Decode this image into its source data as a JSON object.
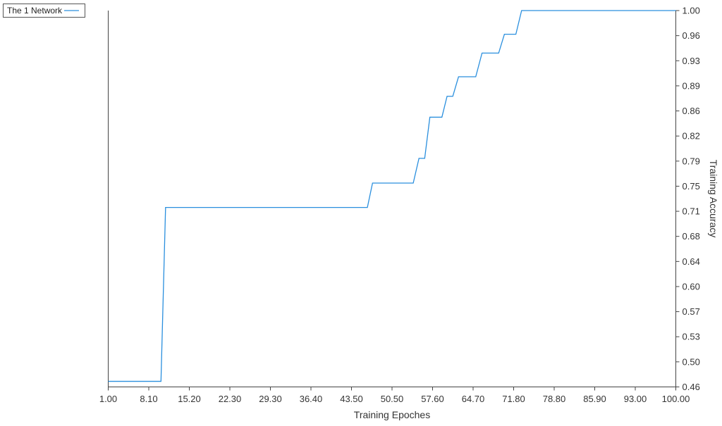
{
  "chart_data": {
    "type": "line",
    "xlabel": "Training Epoches",
    "ylabel": "Training Accuracy",
    "x_tick_labels": [
      "1.00",
      "8.10",
      "15.20",
      "22.30",
      "29.30",
      "36.40",
      "43.50",
      "50.50",
      "57.60",
      "64.70",
      "71.80",
      "78.80",
      "85.90",
      "93.00",
      "100.00"
    ],
    "y_tick_labels": [
      "0.46",
      "0.50",
      "0.53",
      "0.57",
      "0.60",
      "0.64",
      "0.68",
      "0.71",
      "0.75",
      "0.79",
      "0.82",
      "0.86",
      "0.89",
      "0.93",
      "0.96",
      "1.00"
    ],
    "xlim": [
      1,
      100
    ],
    "ylim": [
      0.46,
      1.0
    ],
    "y_axis_position": "right",
    "grid": false,
    "legend_position": "top-left",
    "series": [
      {
        "name": "The 1 Network",
        "color": "#2a8fde",
        "x": [
          1,
          10.2,
          11,
          46.2,
          47.1,
          54.2,
          55.2,
          56.2,
          57.1,
          59.2,
          60.1,
          61.1,
          62.1,
          65.1,
          66.2,
          69.1,
          70.1,
          72.1,
          73.1,
          100
        ],
        "y": [
          0.468,
          0.468,
          0.7175,
          0.7175,
          0.7525,
          0.7525,
          0.788,
          0.788,
          0.847,
          0.847,
          0.877,
          0.877,
          0.905,
          0.905,
          0.939,
          0.939,
          0.966,
          0.966,
          1.0,
          1.0
        ]
      }
    ]
  }
}
